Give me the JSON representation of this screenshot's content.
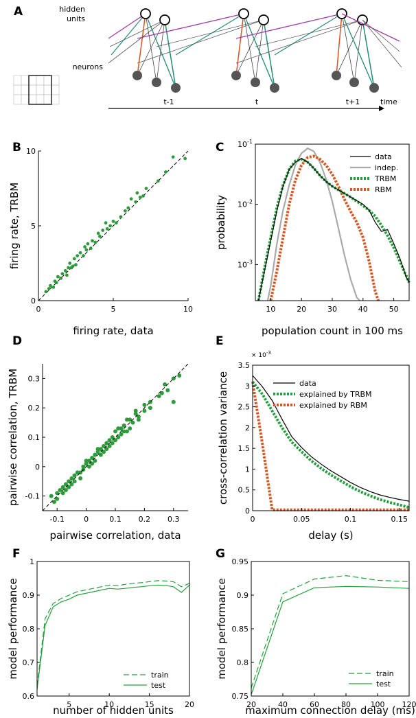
{
  "colors": {
    "green": "#22a03a",
    "green_dot": "#2c9c3a",
    "orange": "#d9541e",
    "gray": "#aaaaaa",
    "purple": "#a23aa8",
    "teal": "#1f8d7a",
    "black": "#000000"
  },
  "panels": {
    "A": {
      "letter": "A",
      "hidden_label_1": "hidden",
      "hidden_label_2": "units",
      "neurons_label": "neurons",
      "time_labels": [
        "t-1",
        "t",
        "t+1"
      ],
      "time_axis_label": "time",
      "matrix": [
        [
          "0",
          "0",
          "0",
          "1",
          "1",
          "1"
        ],
        [
          "0",
          "0",
          "0",
          "1",
          "1",
          "0"
        ],
        [
          "1",
          "1",
          "0",
          "1",
          "0",
          "1"
        ]
      ]
    },
    "B": {
      "letter": "B"
    },
    "C": {
      "letter": "C"
    },
    "D": {
      "letter": "D"
    },
    "E": {
      "letter": "E",
      "exponent_label": "× 10",
      "exponent_power": "-3"
    },
    "F": {
      "letter": "F"
    },
    "G": {
      "letter": "G"
    }
  },
  "chart_data": [
    {
      "panel": "B",
      "type": "scatter",
      "xlabel": "firing rate, data",
      "ylabel": "firing rate, TRBM",
      "xlim": [
        0,
        10
      ],
      "ylim": [
        0,
        10
      ],
      "xticks": [
        "0",
        "5",
        "10"
      ],
      "xtick_values": [
        0,
        5,
        10
      ],
      "yticks": [
        "0",
        "5",
        "10"
      ],
      "ytick_values": [
        0,
        5,
        10
      ],
      "diagonal": true,
      "series": [
        {
          "x": [
            0.5,
            0.7,
            0.8,
            1.0,
            1.1,
            1.2,
            1.3,
            1.5,
            1.6,
            1.8,
            1.9,
            2.0,
            2.1,
            2.2,
            2.3,
            2.4,
            2.5,
            2.6,
            2.8,
            3.0,
            3.1,
            3.2,
            3.3,
            3.5,
            3.6,
            3.8,
            4.0,
            4.1,
            4.3,
            4.5,
            4.6,
            4.8,
            5.0,
            5.2,
            5.5,
            5.8,
            6.0,
            6.2,
            6.5,
            6.6,
            6.8,
            7.0,
            7.2,
            8.0,
            8.5,
            9.0,
            9.8
          ],
          "y": [
            0.6,
            0.8,
            1.0,
            0.9,
            1.3,
            1.2,
            1.6,
            1.5,
            1.8,
            2.0,
            1.7,
            2.2,
            2.5,
            2.2,
            2.3,
            2.8,
            2.4,
            3.0,
            3.2,
            3.0,
            3.6,
            3.4,
            3.8,
            3.5,
            4.0,
            3.9,
            4.5,
            4.3,
            4.7,
            5.2,
            4.8,
            5.0,
            5.3,
            5.2,
            5.6,
            6.0,
            6.2,
            6.8,
            6.6,
            7.2,
            6.9,
            7.0,
            7.5,
            8.0,
            8.6,
            9.6,
            9.5
          ]
        }
      ]
    },
    {
      "panel": "C",
      "type": "line",
      "xlabel": "population count in 100 ms",
      "ylabel": "probability",
      "xlim": [
        5,
        55
      ],
      "ylim_log10": [
        -3.6,
        -1
      ],
      "yscale": "log",
      "xticks": [
        "10",
        "20",
        "30",
        "40",
        "50"
      ],
      "xtick_values": [
        10,
        20,
        30,
        40,
        50
      ],
      "ytick_bases": [
        "10",
        "10",
        "10"
      ],
      "ytick_exps": [
        "-3",
        "-2",
        "-1"
      ],
      "ytick_log_values": [
        -3,
        -2,
        -1
      ],
      "legend": [
        "data",
        "indep.",
        "TRBM",
        "RBM"
      ],
      "legend_position": "top-right",
      "series": [
        {
          "name": "data",
          "x": [
            6,
            8,
            10,
            12,
            14,
            16,
            18,
            20,
            22,
            24,
            26,
            28,
            30,
            32,
            34,
            36,
            38,
            40,
            42,
            44,
            46,
            48,
            50,
            52,
            54,
            55
          ],
          "y": [
            -3.6,
            -3.1,
            -2.6,
            -2.1,
            -1.7,
            -1.42,
            -1.3,
            -1.24,
            -1.3,
            -1.4,
            -1.52,
            -1.62,
            -1.7,
            -1.76,
            -1.82,
            -1.88,
            -1.94,
            -2.0,
            -2.1,
            -2.3,
            -2.45,
            -2.42,
            -2.65,
            -2.9,
            -3.2,
            -3.3
          ]
        },
        {
          "name": "indep.",
          "x": [
            9,
            10,
            12,
            14,
            16,
            18,
            20,
            22,
            24,
            26,
            28,
            30,
            32,
            34,
            36,
            38,
            39
          ],
          "y": [
            -3.6,
            -3.35,
            -2.65,
            -2.1,
            -1.68,
            -1.35,
            -1.15,
            -1.07,
            -1.12,
            -1.3,
            -1.58,
            -1.95,
            -2.4,
            -2.85,
            -3.25,
            -3.55,
            -3.6
          ]
        },
        {
          "name": "TRBM",
          "x": [
            6,
            8,
            10,
            12,
            14,
            16,
            18,
            20,
            22,
            24,
            26,
            28,
            30,
            32,
            34,
            36,
            38,
            40,
            42,
            44,
            46,
            48,
            50,
            52,
            54,
            55
          ],
          "y": [
            -3.6,
            -3.05,
            -2.55,
            -2.05,
            -1.68,
            -1.42,
            -1.28,
            -1.25,
            -1.3,
            -1.4,
            -1.52,
            -1.62,
            -1.7,
            -1.76,
            -1.82,
            -1.88,
            -1.95,
            -2.02,
            -2.1,
            -2.2,
            -2.35,
            -2.52,
            -2.72,
            -2.95,
            -3.18,
            -3.3
          ]
        },
        {
          "name": "RBM",
          "x": [
            10,
            12,
            14,
            16,
            18,
            20,
            22,
            24,
            26,
            28,
            30,
            32,
            34,
            36,
            38,
            40,
            42,
            43,
            44,
            45
          ],
          "y": [
            -3.6,
            -3.1,
            -2.55,
            -2.0,
            -1.6,
            -1.35,
            -1.22,
            -1.2,
            -1.25,
            -1.35,
            -1.5,
            -1.7,
            -1.92,
            -2.12,
            -2.3,
            -2.55,
            -2.95,
            -3.2,
            -3.45,
            -3.6
          ]
        }
      ]
    },
    {
      "panel": "D",
      "type": "scatter",
      "xlabel": "pairwise correlation, data",
      "ylabel": "pairwise correlation, TRBM",
      "xlim": [
        -0.15,
        0.35
      ],
      "ylim": [
        -0.15,
        0.35
      ],
      "xticks": [
        "-0.1",
        "0",
        "0.1",
        "0.2",
        "0.3"
      ],
      "xtick_values": [
        -0.1,
        0,
        0.1,
        0.2,
        0.3
      ],
      "yticks": [
        "-0.1",
        "0",
        "0.1",
        "0.2",
        "0.3"
      ],
      "ytick_values": [
        -0.1,
        0,
        0.1,
        0.2,
        0.3
      ],
      "diagonal": true,
      "series": [
        {
          "x": [
            -0.12,
            -0.11,
            -0.1,
            -0.09,
            -0.08,
            -0.07,
            -0.06,
            -0.05,
            -0.04,
            -0.03,
            -0.02,
            -0.01,
            0.0,
            0.01,
            0.02,
            0.03,
            0.04,
            0.05,
            0.06,
            0.07,
            0.08,
            0.09,
            0.1,
            0.11,
            0.12,
            0.13,
            0.14,
            0.15,
            0.16,
            0.17,
            0.18,
            0.2,
            0.22,
            0.25,
            0.28,
            0.3,
            0.32,
            -0.1,
            -0.08,
            -0.05,
            -0.02,
            0.0,
            0.02,
            0.05,
            0.08,
            0.1,
            0.12,
            0.15,
            0.18,
            0.2,
            0.06,
            0.03,
            -0.03,
            -0.06,
            0.09,
            0.13,
            0.17,
            0.22,
            0.27,
            0.3,
            0.26,
            0.14,
            0.11,
            0.07,
            0.04,
            0.01,
            -0.01,
            -0.04,
            -0.07
          ],
          "y": [
            -0.1,
            -0.12,
            -0.09,
            -0.08,
            -0.07,
            -0.06,
            -0.05,
            -0.06,
            -0.03,
            -0.02,
            -0.02,
            0.0,
            0.01,
            0.0,
            0.03,
            0.04,
            0.05,
            0.04,
            0.07,
            0.06,
            0.09,
            0.08,
            0.12,
            0.1,
            0.11,
            0.14,
            0.12,
            0.16,
            0.15,
            0.18,
            0.17,
            0.19,
            0.22,
            0.24,
            0.26,
            0.3,
            0.31,
            -0.11,
            -0.09,
            -0.04,
            -0.04,
            0.02,
            0.01,
            0.06,
            0.07,
            0.09,
            0.13,
            0.13,
            0.16,
            0.21,
            0.05,
            0.02,
            -0.02,
            -0.07,
            0.1,
            0.12,
            0.19,
            0.2,
            0.28,
            0.22,
            0.25,
            0.16,
            0.13,
            0.08,
            0.06,
            0.02,
            -0.01,
            -0.05,
            -0.08
          ]
        }
      ]
    },
    {
      "panel": "E",
      "type": "line",
      "xlabel": "delay (s)",
      "ylabel": "cross-correlation variance",
      "xlim": [
        0,
        0.16
      ],
      "ylim": [
        0,
        3.5
      ],
      "xticks": [
        "0",
        "0.05",
        "0.1",
        "0.15"
      ],
      "xtick_values": [
        0,
        0.05,
        0.1,
        0.15
      ],
      "yticks": [
        "0",
        "0.5",
        "1",
        "1.5",
        "2",
        "2.5",
        "3",
        "3.5"
      ],
      "ytick_values": [
        0,
        0.5,
        1,
        1.5,
        2,
        2.5,
        3,
        3.5
      ],
      "legend": [
        "data",
        "explained by TRBM",
        "explained by RBM"
      ],
      "legend_position": "top-right",
      "series": [
        {
          "name": "data",
          "x": [
            0,
            0.01,
            0.02,
            0.03,
            0.04,
            0.05,
            0.06,
            0.07,
            0.08,
            0.09,
            0.1,
            0.11,
            0.12,
            0.13,
            0.14,
            0.15,
            0.16
          ],
          "y": [
            3.25,
            2.98,
            2.65,
            2.2,
            1.78,
            1.52,
            1.3,
            1.12,
            0.96,
            0.82,
            0.68,
            0.56,
            0.46,
            0.38,
            0.32,
            0.27,
            0.23
          ]
        },
        {
          "name": "explained by TRBM",
          "x": [
            0,
            0.01,
            0.02,
            0.03,
            0.04,
            0.05,
            0.06,
            0.07,
            0.08,
            0.09,
            0.1,
            0.11,
            0.12,
            0.13,
            0.14,
            0.15,
            0.16
          ],
          "y": [
            3.1,
            2.8,
            2.4,
            2.0,
            1.65,
            1.42,
            1.2,
            1.02,
            0.86,
            0.72,
            0.58,
            0.46,
            0.36,
            0.27,
            0.2,
            0.14,
            0.08
          ]
        },
        {
          "name": "explained by RBM",
          "x": [
            0,
            0.01,
            0.02,
            0.03,
            0.16
          ],
          "y": [
            3.1,
            1.6,
            0.02,
            0.02,
            0.02
          ]
        }
      ]
    },
    {
      "panel": "F",
      "type": "line",
      "xlabel": "number of hidden units",
      "ylabel": "model performance",
      "xlim": [
        1,
        20
      ],
      "ylim": [
        0.6,
        1.0
      ],
      "xticks": [
        "5",
        "10",
        "15",
        "20"
      ],
      "xtick_values": [
        5,
        10,
        15,
        20
      ],
      "yticks": [
        "0.6",
        "0.7",
        "0.8",
        "0.9",
        "1"
      ],
      "ytick_values": [
        0.6,
        0.7,
        0.8,
        0.9,
        1.0
      ],
      "legend": [
        "train",
        "test"
      ],
      "legend_position": "bottom-right",
      "series": [
        {
          "name": "train",
          "x": [
            1,
            2,
            3,
            4,
            5,
            6,
            7,
            8,
            9,
            10,
            11,
            12,
            13,
            14,
            15,
            16,
            17,
            18,
            19,
            20
          ],
          "y": [
            0.63,
            0.83,
            0.875,
            0.89,
            0.9,
            0.91,
            0.915,
            0.92,
            0.925,
            0.93,
            0.928,
            0.932,
            0.935,
            0.937,
            0.94,
            0.943,
            0.942,
            0.94,
            0.925,
            0.935
          ]
        },
        {
          "name": "test",
          "x": [
            1,
            2,
            3,
            4,
            5,
            6,
            7,
            8,
            9,
            10,
            11,
            12,
            13,
            14,
            15,
            16,
            17,
            18,
            19,
            20
          ],
          "y": [
            0.62,
            0.81,
            0.865,
            0.88,
            0.888,
            0.9,
            0.905,
            0.91,
            0.915,
            0.92,
            0.918,
            0.92,
            0.923,
            0.925,
            0.928,
            0.93,
            0.929,
            0.925,
            0.908,
            0.93
          ]
        }
      ]
    },
    {
      "panel": "G",
      "type": "line",
      "xlabel": "maximum connection delay (ms)",
      "ylabel": "model performance",
      "xlim": [
        20,
        120
      ],
      "ylim": [
        0.75,
        0.95
      ],
      "xticks": [
        "20",
        "40",
        "60",
        "80",
        "100",
        "120"
      ],
      "xtick_values": [
        20,
        40,
        60,
        80,
        100,
        120
      ],
      "yticks": [
        "0.75",
        "0.8",
        "0.85",
        "0.9",
        "0.95"
      ],
      "ytick_values": [
        0.75,
        0.8,
        0.85,
        0.9,
        0.95
      ],
      "legend": [
        "train",
        "test"
      ],
      "legend_position": "bottom-right",
      "series": [
        {
          "name": "train",
          "x": [
            20,
            40,
            60,
            80,
            100,
            120
          ],
          "y": [
            0.762,
            0.902,
            0.924,
            0.929,
            0.922,
            0.92
          ]
        },
        {
          "name": "test",
          "x": [
            20,
            40,
            60,
            80,
            100,
            120
          ],
          "y": [
            0.752,
            0.89,
            0.911,
            0.913,
            0.912,
            0.91
          ]
        }
      ]
    }
  ]
}
